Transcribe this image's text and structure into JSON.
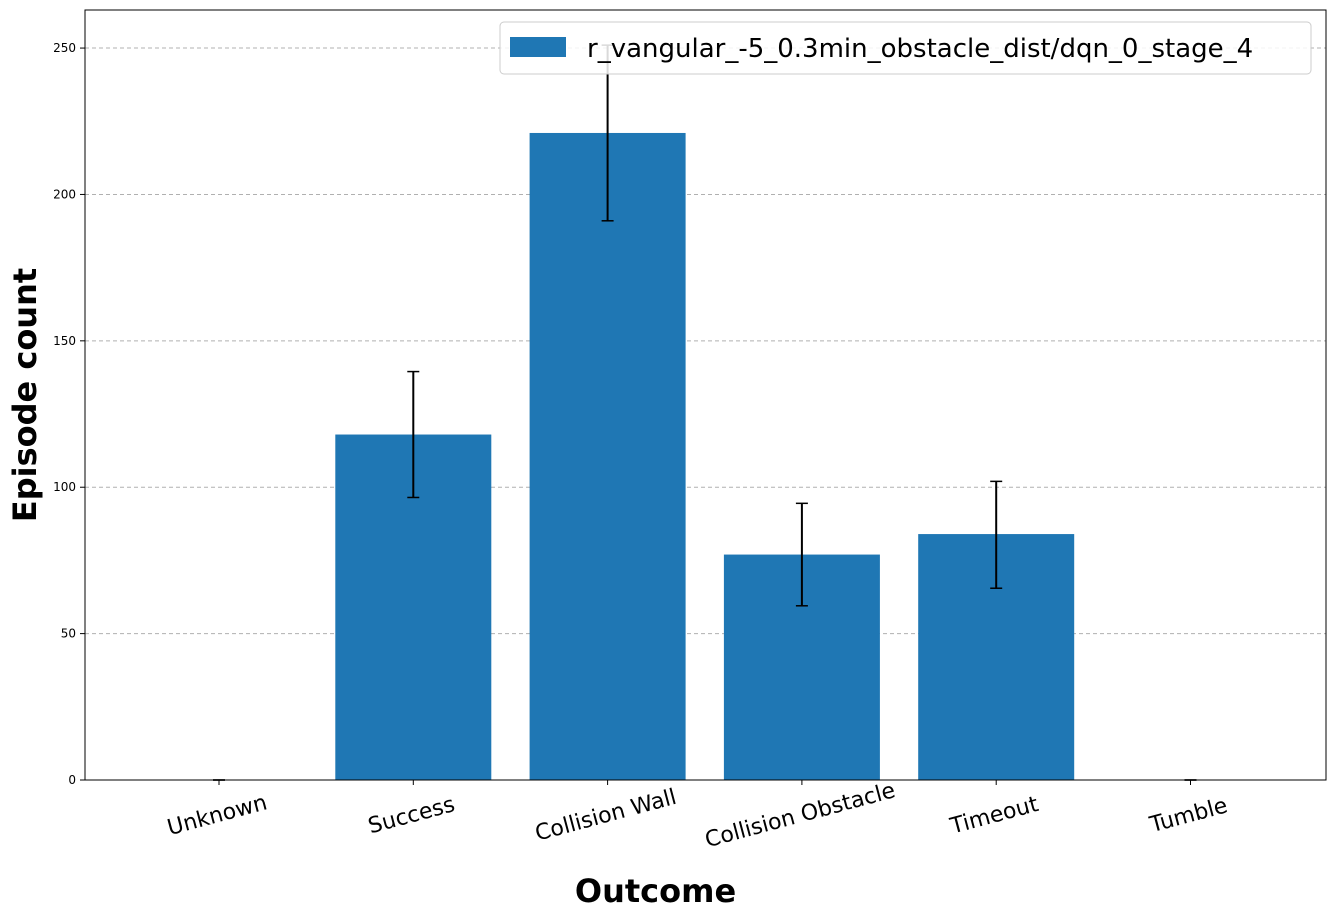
{
  "chart_data": {
    "type": "bar",
    "title": "",
    "xlabel": "Outcome",
    "ylabel": "Episode count",
    "categories": [
      "Unknown",
      "Success",
      "Collision Wall",
      "Collision Obstacle",
      "Timeout",
      "Tumble"
    ],
    "series": [
      {
        "name": "r_vangular_-5_0.3min_obstacle_dist/dqn_0_stage_4",
        "values": [
          0,
          118,
          221,
          77,
          84,
          0
        ],
        "error_low": [
          0,
          96.5,
          191,
          59.5,
          65.5,
          0
        ],
        "error_high": [
          0,
          139.5,
          251,
          94.5,
          102,
          0
        ],
        "color": "#1f77b4"
      }
    ],
    "ylim": [
      0,
      263
    ],
    "yticks": [
      0,
      50,
      100,
      150,
      200,
      250
    ],
    "grid": "y",
    "legend_position": "top-right",
    "xtick_rotation_deg": 15
  }
}
